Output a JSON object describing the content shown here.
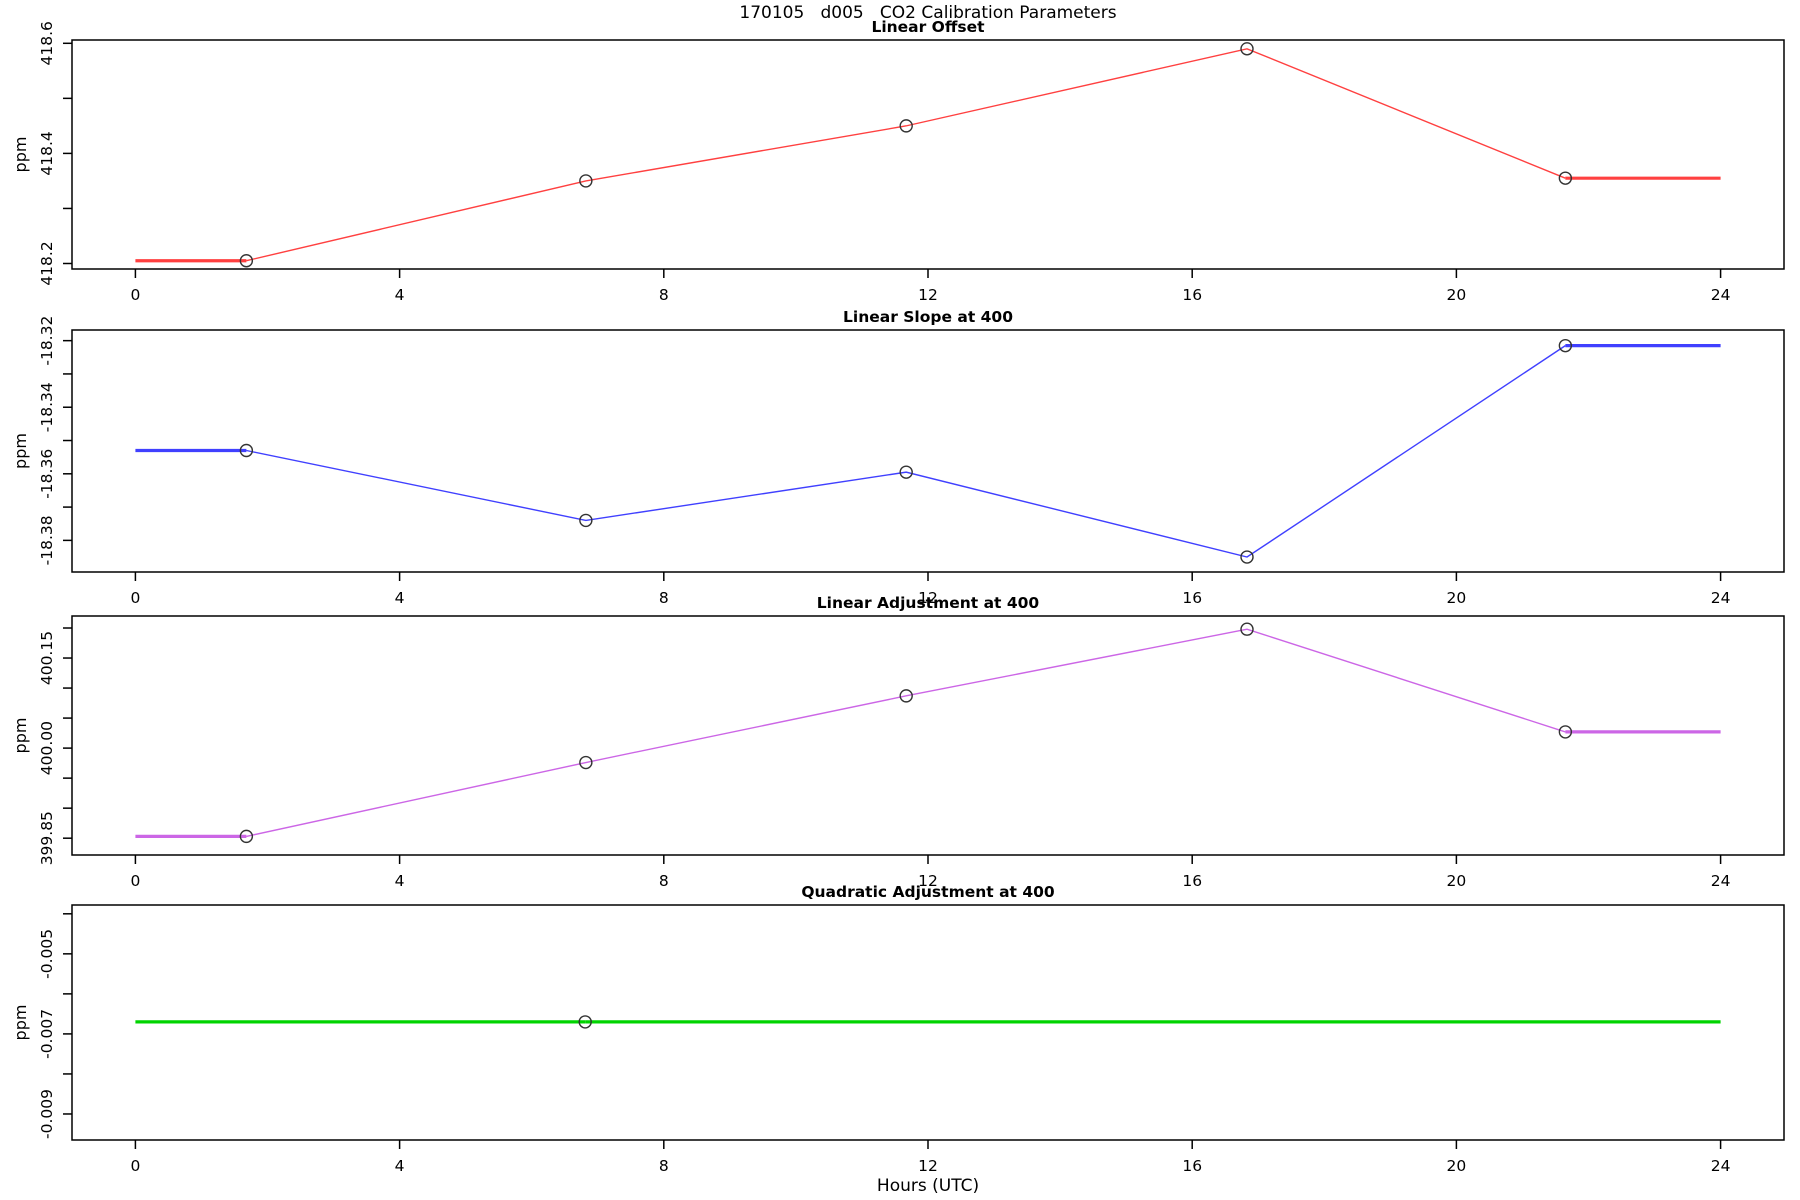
{
  "page_title": "170105   d005   CO2 Calibration Parameters",
  "x_axis_label": "Hours (UTC)",
  "chart_data": [
    {
      "type": "line",
      "title": "Linear Offset",
      "ylabel": "ppm",
      "color": "#ff4040",
      "marker": "open-circle",
      "x": [
        1.68,
        6.82,
        11.67,
        16.83,
        21.65
      ],
      "y": [
        418.205,
        418.35,
        418.45,
        418.59,
        418.355
      ],
      "flat_left_x": 0,
      "flat_right_x": 24,
      "xlim": [
        -0.96,
        24.96
      ],
      "ylim": [
        418.19,
        418.606
      ],
      "xticks": [
        0,
        4,
        8,
        12,
        16,
        20,
        24
      ],
      "yticks": [
        {
          "v": 418.2,
          "label": "418.2"
        },
        {
          "v": 418.3,
          "label": ""
        },
        {
          "v": 418.4,
          "label": "418.4"
        },
        {
          "v": 418.5,
          "label": ""
        },
        {
          "v": 418.6,
          "label": "418.6"
        }
      ],
      "grid": false
    },
    {
      "type": "line",
      "title": "Linear Slope at 400",
      "ylabel": "ppm",
      "color": "#4040ff",
      "marker": "open-circle",
      "x": [
        1.68,
        6.82,
        11.67,
        16.83,
        21.65
      ],
      "y": [
        -18.353,
        -18.374,
        -18.3595,
        -18.385,
        -18.3215
      ],
      "flat_left_x": 0,
      "flat_right_x": 24,
      "xlim": [
        -0.96,
        24.96
      ],
      "ylim": [
        -18.3895,
        -18.3168
      ],
      "xticks": [
        0,
        4,
        8,
        12,
        16,
        20,
        24
      ],
      "yticks": [
        {
          "v": -18.38,
          "label": "-18.38"
        },
        {
          "v": -18.37,
          "label": ""
        },
        {
          "v": -18.36,
          "label": "-18.36"
        },
        {
          "v": -18.35,
          "label": ""
        },
        {
          "v": -18.34,
          "label": "-18.34"
        },
        {
          "v": -18.33,
          "label": ""
        },
        {
          "v": -18.32,
          "label": "-18.32"
        }
      ],
      "grid": false
    },
    {
      "type": "line",
      "title": "Linear Adjustment at 400",
      "ylabel": "ppm",
      "color": "#cc66e6",
      "marker": "open-circle",
      "x": [
        1.68,
        6.82,
        11.67,
        16.83,
        21.65
      ],
      "y": [
        399.853,
        399.976,
        400.087,
        400.198,
        400.027
      ],
      "flat_left_x": 0,
      "flat_right_x": 24,
      "xlim": [
        -0.96,
        24.96
      ],
      "ylim": [
        399.822,
        400.22
      ],
      "xticks": [
        0,
        4,
        8,
        12,
        16,
        20,
        24
      ],
      "yticks": [
        {
          "v": 399.85,
          "label": "399.85"
        },
        {
          "v": 399.9,
          "label": ""
        },
        {
          "v": 399.95,
          "label": ""
        },
        {
          "v": 400.0,
          "label": "400.00"
        },
        {
          "v": 400.05,
          "label": ""
        },
        {
          "v": 400.1,
          "label": ""
        },
        {
          "v": 400.15,
          "label": "400.15"
        },
        {
          "v": 400.2,
          "label": ""
        }
      ],
      "grid": false
    },
    {
      "type": "line",
      "title": "Quadratic Adjustment at 400",
      "ylabel": "ppm",
      "color": "#00d400",
      "marker": "open-circle",
      "x": [
        6.81
      ],
      "y": [
        -0.0067
      ],
      "flat_left_x": 0,
      "flat_right_x": 24,
      "xlim": [
        -0.96,
        24.96
      ],
      "ylim": [
        -0.00965,
        -0.00378
      ],
      "xticks": [
        0,
        4,
        8,
        12,
        16,
        20,
        24
      ],
      "yticks": [
        {
          "v": -0.009,
          "label": "-0.009"
        },
        {
          "v": -0.008,
          "label": ""
        },
        {
          "v": -0.007,
          "label": "-0.007"
        },
        {
          "v": -0.006,
          "label": ""
        },
        {
          "v": -0.005,
          "label": "-0.005"
        },
        {
          "v": -0.004,
          "label": ""
        }
      ],
      "grid": false
    }
  ]
}
